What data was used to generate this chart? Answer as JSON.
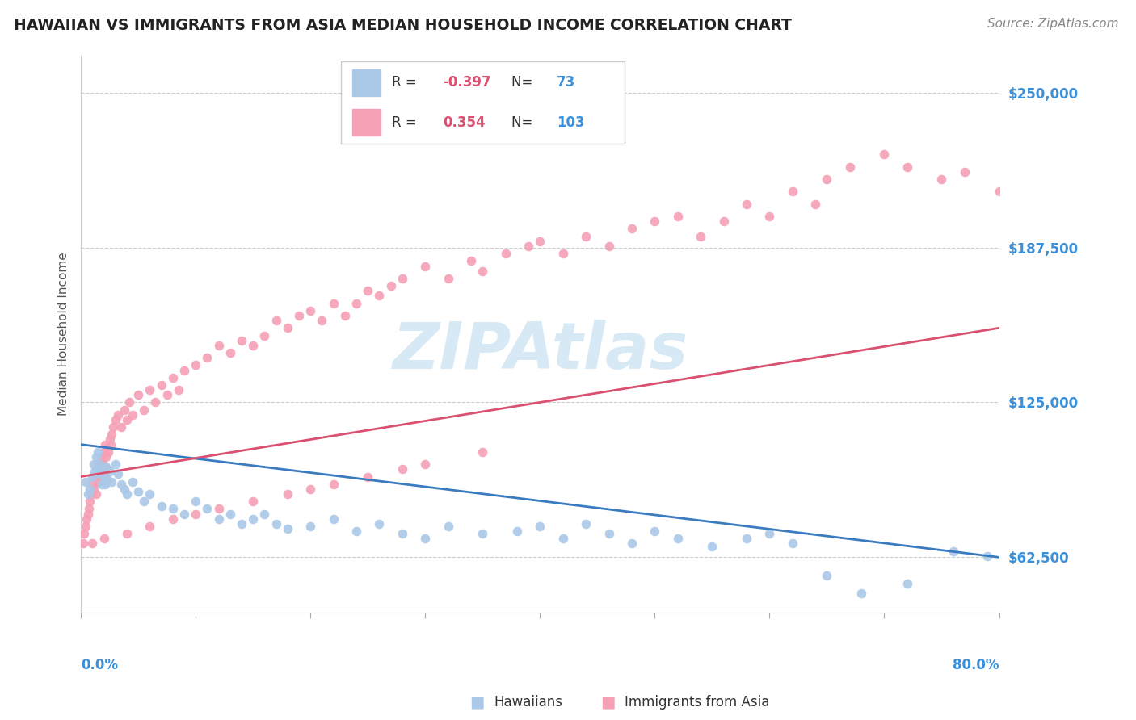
{
  "title": "HAWAIIAN VS IMMIGRANTS FROM ASIA MEDIAN HOUSEHOLD INCOME CORRELATION CHART",
  "source": "Source: ZipAtlas.com",
  "ylabel": "Median Household Income",
  "yticks": [
    62500,
    125000,
    187500,
    250000
  ],
  "ytick_labels": [
    "$62,500",
    "$125,000",
    "$187,500",
    "$250,000"
  ],
  "xmin": 0.0,
  "xmax": 80.0,
  "ymin": 40000,
  "ymax": 265000,
  "watermark": "ZIPAtlas",
  "blue_color": "#aac8e8",
  "pink_color": "#f5a0b5",
  "blue_line_color": "#3a7abf",
  "pink_line_color": "#d95070",
  "title_color": "#222222",
  "axis_label_color": "#3a90d9",
  "legend_r_color": "#d95070",
  "legend_n_color": "#3a90d9",
  "blue_trend_x": [
    0.0,
    80.0
  ],
  "blue_trend_y": [
    108000,
    62500
  ],
  "pink_trend_x": [
    0.0,
    80.0
  ],
  "pink_trend_y": [
    95000,
    155000
  ],
  "blue_x": [
    0.4,
    0.6,
    0.8,
    1.0,
    1.1,
    1.2,
    1.3,
    1.4,
    1.5,
    1.6,
    1.7,
    1.8,
    1.9,
    2.0,
    2.1,
    2.2,
    2.3,
    2.5,
    2.7,
    3.0,
    3.2,
    3.5,
    3.8,
    4.0,
    4.5,
    5.0,
    5.5,
    6.0,
    7.0,
    8.0,
    9.0,
    10.0,
    11.0,
    12.0,
    13.0,
    14.0,
    15.0,
    16.0,
    17.0,
    18.0,
    20.0,
    22.0,
    24.0,
    26.0,
    28.0,
    30.0,
    32.0,
    35.0,
    38.0,
    40.0,
    42.0,
    44.0,
    46.0,
    48.0,
    50.0,
    52.0,
    55.0,
    58.0,
    60.0,
    62.0,
    65.0,
    68.0,
    72.0,
    76.0,
    79.0
  ],
  "blue_y": [
    93000,
    88000,
    90000,
    95000,
    100000,
    97000,
    103000,
    98000,
    105000,
    100000,
    96000,
    92000,
    98000,
    95000,
    92000,
    99000,
    94000,
    97000,
    93000,
    100000,
    96000,
    92000,
    90000,
    88000,
    93000,
    89000,
    85000,
    88000,
    83000,
    82000,
    80000,
    85000,
    82000,
    78000,
    80000,
    76000,
    78000,
    80000,
    76000,
    74000,
    75000,
    78000,
    73000,
    76000,
    72000,
    70000,
    75000,
    72000,
    73000,
    75000,
    70000,
    76000,
    72000,
    68000,
    73000,
    70000,
    67000,
    70000,
    72000,
    68000,
    55000,
    48000,
    52000,
    65000,
    63000
  ],
  "pink_x": [
    0.2,
    0.3,
    0.4,
    0.5,
    0.6,
    0.7,
    0.8,
    0.9,
    1.0,
    1.1,
    1.2,
    1.3,
    1.4,
    1.5,
    1.6,
    1.7,
    1.8,
    1.9,
    2.0,
    2.1,
    2.2,
    2.3,
    2.4,
    2.5,
    2.6,
    2.7,
    2.8,
    3.0,
    3.2,
    3.5,
    3.8,
    4.0,
    4.2,
    4.5,
    5.0,
    5.5,
    6.0,
    6.5,
    7.0,
    7.5,
    8.0,
    8.5,
    9.0,
    10.0,
    11.0,
    12.0,
    13.0,
    14.0,
    15.0,
    16.0,
    17.0,
    18.0,
    19.0,
    20.0,
    21.0,
    22.0,
    23.0,
    24.0,
    25.0,
    26.0,
    27.0,
    28.0,
    30.0,
    32.0,
    34.0,
    35.0,
    37.0,
    39.0,
    40.0,
    42.0,
    44.0,
    46.0,
    48.0,
    50.0,
    52.0,
    54.0,
    56.0,
    58.0,
    60.0,
    62.0,
    64.0,
    65.0,
    67.0,
    70.0,
    72.0,
    75.0,
    77.0,
    80.0,
    35.0,
    30.0,
    28.0,
    25.0,
    22.0,
    20.0,
    18.0,
    15.0,
    12.0,
    10.0,
    8.0,
    6.0,
    4.0,
    2.0,
    1.0
  ],
  "pink_y": [
    68000,
    72000,
    75000,
    78000,
    80000,
    82000,
    85000,
    88000,
    92000,
    90000,
    95000,
    88000,
    93000,
    100000,
    95000,
    98000,
    103000,
    100000,
    105000,
    108000,
    103000,
    98000,
    105000,
    110000,
    108000,
    112000,
    115000,
    118000,
    120000,
    115000,
    122000,
    118000,
    125000,
    120000,
    128000,
    122000,
    130000,
    125000,
    132000,
    128000,
    135000,
    130000,
    138000,
    140000,
    143000,
    148000,
    145000,
    150000,
    148000,
    152000,
    158000,
    155000,
    160000,
    162000,
    158000,
    165000,
    160000,
    165000,
    170000,
    168000,
    172000,
    175000,
    180000,
    175000,
    182000,
    178000,
    185000,
    188000,
    190000,
    185000,
    192000,
    188000,
    195000,
    198000,
    200000,
    192000,
    198000,
    205000,
    200000,
    210000,
    205000,
    215000,
    220000,
    225000,
    220000,
    215000,
    218000,
    210000,
    105000,
    100000,
    98000,
    95000,
    92000,
    90000,
    88000,
    85000,
    82000,
    80000,
    78000,
    75000,
    72000,
    70000,
    68000
  ]
}
